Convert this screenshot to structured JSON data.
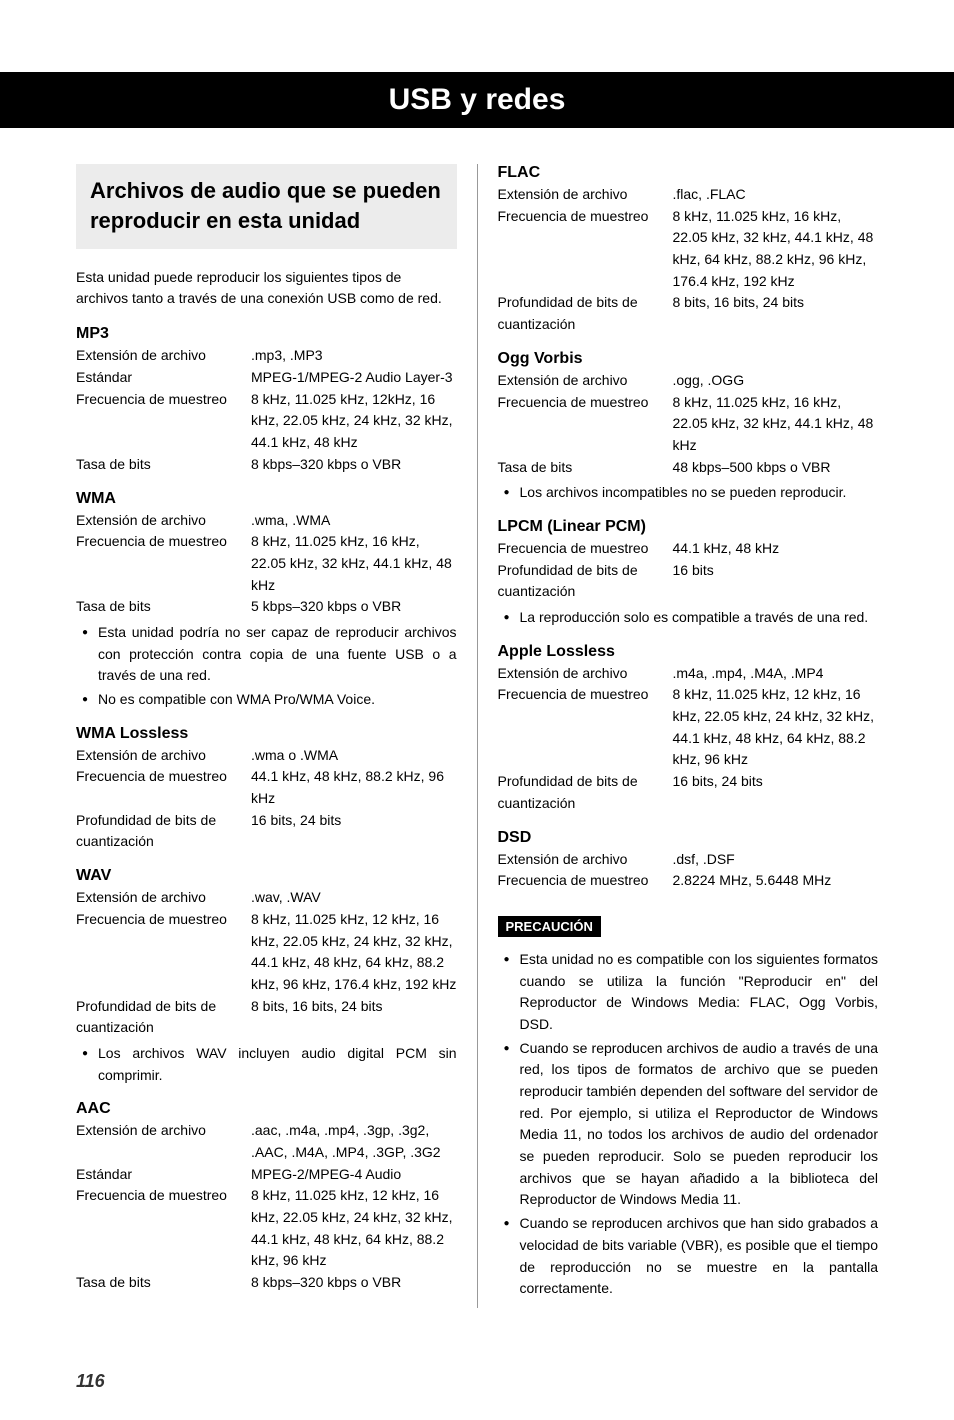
{
  "header": {
    "title": "USB y redes"
  },
  "section": {
    "title": "Archivos de audio que se pueden reproducir en esta unidad",
    "intro": "Esta unidad puede reproducir los siguientes tipos de archivos tanto a través de una conexión USB como de red."
  },
  "labels": {
    "ext": "Extensión de archivo",
    "std": "Estándar",
    "freq": "Frecuencia de muestreo",
    "bitrate": "Tasa de bits",
    "bitdepth": "Profundidad de bits de cuantización"
  },
  "formats": {
    "mp3": {
      "name": "MP3",
      "ext": ".mp3, .MP3",
      "std": "MPEG-1/MPEG-2 Audio Layer-3",
      "freq": "8 kHz, 11.025 kHz, 12kHz, 16 kHz, 22.05 kHz, 24 kHz, 32 kHz, 44.1 kHz, 48 kHz",
      "bitrate": "8 kbps–320 kbps o VBR"
    },
    "wma": {
      "name": "WMA",
      "ext": ".wma, .WMA",
      "freq": "8 kHz, 11.025 kHz, 16 kHz, 22.05 kHz, 32 kHz, 44.1 kHz, 48 kHz",
      "bitrate": "5 kbps–320 kbps o VBR",
      "notes": [
        "Esta unidad podría no ser capaz de reproducir archivos con protección contra copia de una fuente USB o a través de una red.",
        "No es compatible con WMA Pro/WMA Voice."
      ]
    },
    "wmalossless": {
      "name": "WMA Lossless",
      "ext": ".wma o .WMA",
      "freq": "44.1 kHz, 48 kHz, 88.2 kHz, 96 kHz",
      "bitdepth": "16 bits, 24 bits"
    },
    "wav": {
      "name": "WAV",
      "ext": ".wav, .WAV",
      "freq": "8 kHz, 11.025 kHz, 12 kHz, 16 kHz, 22.05 kHz, 24 kHz, 32 kHz, 44.1 kHz, 48 kHz, 64 kHz, 88.2 kHz, 96 kHz, 176.4 kHz, 192 kHz",
      "bitdepth": "8 bits, 16 bits, 24 bits",
      "notes": [
        "Los archivos WAV incluyen audio digital PCM sin comprimir."
      ]
    },
    "aac": {
      "name": "AAC",
      "ext": ".aac, .m4a, .mp4, .3gp, .3g2, .AAC, .M4A, .MP4, .3GP, .3G2",
      "std": "MPEG-2/MPEG-4 Audio",
      "freq": "8 kHz, 11.025 kHz, 12 kHz, 16 kHz, 22.05 kHz, 24 kHz, 32 kHz, 44.1 kHz, 48 kHz, 64 kHz, 88.2 kHz, 96 kHz",
      "bitrate": "8 kbps–320 kbps o VBR"
    },
    "flac": {
      "name": "FLAC",
      "ext": ".flac, .FLAC",
      "freq": "8 kHz, 11.025 kHz, 16 kHz, 22.05 kHz, 32 kHz, 44.1 kHz, 48 kHz, 64 kHz, 88.2 kHz, 96 kHz, 176.4 kHz, 192 kHz",
      "bitdepth": "8 bits, 16 bits, 24 bits"
    },
    "ogg": {
      "name": "Ogg Vorbis",
      "ext": ".ogg, .OGG",
      "freq": "8 kHz, 11.025 kHz, 16 kHz, 22.05 kHz, 32 kHz, 44.1 kHz, 48 kHz",
      "bitrate": "48 kbps–500 kbps o VBR",
      "notes": [
        "Los archivos incompatibles no se pueden reproducir."
      ]
    },
    "lpcm": {
      "name": "LPCM (Linear PCM)",
      "freq": "44.1 kHz, 48 kHz",
      "bitdepth": "16 bits",
      "notes": [
        "La reproducción solo es compatible a través de una red."
      ]
    },
    "apple": {
      "name": "Apple Lossless",
      "ext": ".m4a, .mp4, .M4A, .MP4",
      "freq": "8 kHz, 11.025 kHz, 12 kHz, 16 kHz, 22.05 kHz, 24 kHz, 32 kHz, 44.1 kHz, 48 kHz, 64 kHz, 88.2 kHz, 96 kHz",
      "bitdepth": "16 bits, 24 bits"
    },
    "dsd": {
      "name": "DSD",
      "ext": ".dsf, .DSF",
      "freq": "2.8224 MHz, 5.6448 MHz"
    }
  },
  "caution": {
    "label": "PRECAUCIÓN",
    "items": [
      "Esta unidad no es compatible con los siguientes formatos cuando se utiliza la función \"Reproducir en\" del Reproductor de Windows Media: FLAC, Ogg Vorbis, DSD.",
      "Cuando se reproducen archivos de audio a través de una red, los tipos de formatos de archivo que se pueden reproducir también dependen del software del servidor de red. Por ejemplo, si utiliza el Reproductor de Windows Media 11, no todos los archivos de audio del ordenador se pueden reproducir. Solo se pueden reproducir los archivos que se hayan añadido a la biblioteca del Reproductor de Windows Media 11.",
      "Cuando se reproducen archivos que han sido grabados a velocidad de bits variable (VBR), es posible que el tiempo de reproducción no se muestre en la pantalla correctamente."
    ]
  },
  "page": "116"
}
